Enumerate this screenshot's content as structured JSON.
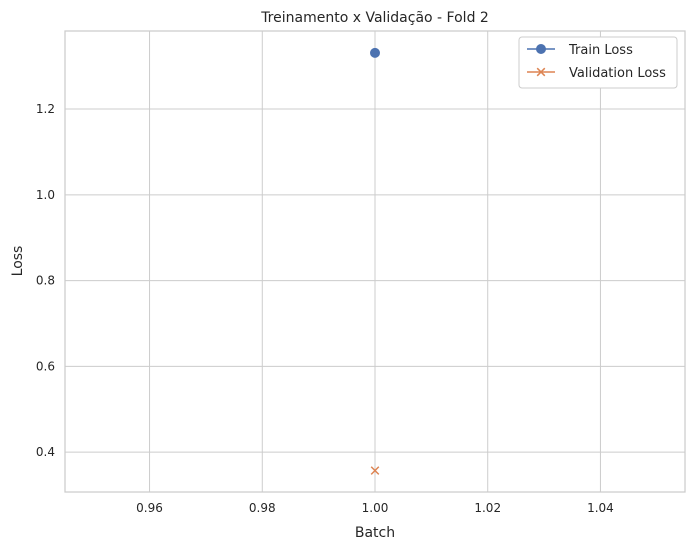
{
  "chart_data": {
    "type": "line",
    "title": "Treinamento x Validação - Fold 2",
    "xlabel": "Batch",
    "ylabel": "Loss",
    "xlim": [
      0.945,
      1.055
    ],
    "ylim": [
      0.307,
      1.382
    ],
    "xticks": [
      0.96,
      0.98,
      1.0,
      1.02,
      1.04
    ],
    "xtick_labels": [
      "0.96",
      "0.98",
      "1.00",
      "1.02",
      "1.04"
    ],
    "yticks": [
      0.4,
      0.6,
      0.8,
      1.0,
      1.2
    ],
    "ytick_labels": [
      "0.4",
      "0.6",
      "0.8",
      "1.0",
      "1.2"
    ],
    "grid": true,
    "legend_position": "top-right",
    "series": [
      {
        "name": "Train Loss",
        "marker": "circle",
        "color": "#4c72b0",
        "x": [
          1.0
        ],
        "y": [
          1.331
        ]
      },
      {
        "name": "Validation Loss",
        "marker": "x",
        "color": "#dd8452",
        "x": [
          1.0
        ],
        "y": [
          0.357
        ]
      }
    ]
  }
}
